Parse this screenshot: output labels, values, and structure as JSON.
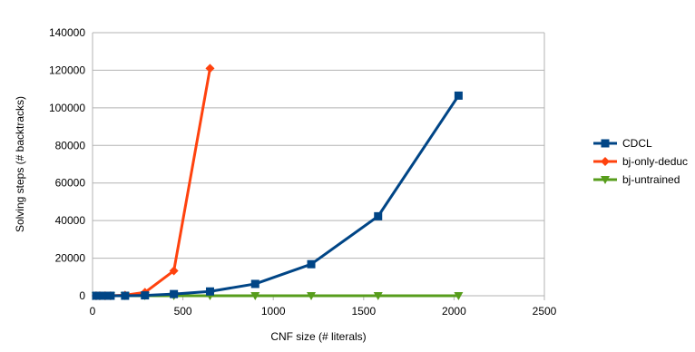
{
  "chart_data": {
    "type": "line",
    "title": "",
    "xlabel": "CNF size (# literals)",
    "ylabel": "Solving steps (# backtracks)",
    "xlim": [
      0,
      2500
    ],
    "ylim": [
      0,
      140000
    ],
    "xticks": [
      0,
      500,
      1000,
      1500,
      2000,
      2500
    ],
    "yticks": [
      0,
      20000,
      40000,
      60000,
      80000,
      100000,
      120000,
      140000
    ],
    "grid": "horizontal",
    "legend_position": "right",
    "series": [
      {
        "name": "CDCL",
        "color": "#004586",
        "marker": "square",
        "x": [
          20,
          40,
          70,
          100,
          180,
          290,
          450,
          650,
          900,
          1210,
          1580,
          2025
        ],
        "y": [
          0,
          0,
          0,
          0,
          0,
          200,
          900,
          2300,
          6300,
          16800,
          42300,
          106500
        ]
      },
      {
        "name": "bj-only-deduc",
        "color": "#ff420e",
        "marker": "diamond",
        "x": [
          20,
          40,
          70,
          100,
          180,
          290,
          450,
          650
        ],
        "y": [
          0,
          0,
          0,
          0,
          300,
          1800,
          13300,
          121000
        ]
      },
      {
        "name": "bj-untrained",
        "color": "#579d1c",
        "marker": "triangle-down",
        "x": [
          20,
          40,
          70,
          100,
          180,
          290,
          450,
          650,
          900,
          1210,
          1580,
          2025
        ],
        "y": [
          0,
          0,
          0,
          0,
          0,
          0,
          0,
          0,
          0,
          0,
          0,
          0
        ]
      }
    ]
  }
}
